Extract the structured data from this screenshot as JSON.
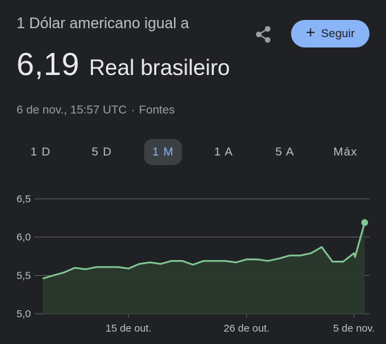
{
  "header": {
    "subtitle": "1 Dólar americano igual a",
    "rate": "6,19",
    "currency": "Real brasileiro"
  },
  "meta": {
    "timestamp": "6 de nov., 15:57 UTC",
    "separator": "·",
    "sources": "Fontes"
  },
  "actions": {
    "share_icon": "share-icon",
    "follow_label": "Seguir",
    "follow_icon": "plus-icon"
  },
  "tabs": [
    {
      "label": "1 D",
      "active": false
    },
    {
      "label": "5 D",
      "active": false
    },
    {
      "label": "1 M",
      "active": true
    },
    {
      "label": "1 A",
      "active": false
    },
    {
      "label": "5 A",
      "active": false
    },
    {
      "label": "Máx",
      "active": false
    }
  ],
  "colors": {
    "background": "#202124",
    "line": "#81c995",
    "fill": "#2b3a2f",
    "grid": "#5f6368",
    "accent": "#8ab4f8"
  },
  "chart_data": {
    "type": "area",
    "y_ticks": [
      "6,5",
      "6,0",
      "5,5",
      "5,0"
    ],
    "y_tick_values": [
      6.5,
      6.0,
      5.5,
      5.0
    ],
    "ylim": [
      5.0,
      6.5
    ],
    "x_tick_labels": [
      "15 de out.",
      "26 de out.",
      "5 de nov."
    ],
    "x_tick_dates": [
      "2024-10-15",
      "2024-10-26",
      "2024-11-05"
    ],
    "x_range": [
      "2024-10-07",
      "2024-11-06"
    ],
    "points": [
      {
        "x": "2024-10-07",
        "y": 5.46
      },
      {
        "x": "2024-10-08",
        "y": 5.5
      },
      {
        "x": "2024-10-09",
        "y": 5.54
      },
      {
        "x": "2024-10-10",
        "y": 5.6
      },
      {
        "x": "2024-10-11",
        "y": 5.58
      },
      {
        "x": "2024-10-12",
        "y": 5.61
      },
      {
        "x": "2024-10-13",
        "y": 5.61
      },
      {
        "x": "2024-10-14",
        "y": 5.61
      },
      {
        "x": "2024-10-15",
        "y": 5.59
      },
      {
        "x": "2024-10-16",
        "y": 5.65
      },
      {
        "x": "2024-10-17",
        "y": 5.67
      },
      {
        "x": "2024-10-18",
        "y": 5.65
      },
      {
        "x": "2024-10-19",
        "y": 5.69
      },
      {
        "x": "2024-10-20",
        "y": 5.69
      },
      {
        "x": "2024-10-21",
        "y": 5.64
      },
      {
        "x": "2024-10-22",
        "y": 5.69
      },
      {
        "x": "2024-10-23",
        "y": 5.69
      },
      {
        "x": "2024-10-24",
        "y": 5.69
      },
      {
        "x": "2024-10-25",
        "y": 5.67
      },
      {
        "x": "2024-10-26",
        "y": 5.71
      },
      {
        "x": "2024-10-27",
        "y": 5.71
      },
      {
        "x": "2024-10-28",
        "y": 5.69
      },
      {
        "x": "2024-10-29",
        "y": 5.72
      },
      {
        "x": "2024-10-30",
        "y": 5.76
      },
      {
        "x": "2024-10-31",
        "y": 5.76
      },
      {
        "x": "2024-11-01",
        "y": 5.79
      },
      {
        "x": "2024-11-02",
        "y": 5.87
      },
      {
        "x": "2024-11-03",
        "y": 5.68
      },
      {
        "x": "2024-11-04",
        "y": 5.68
      },
      {
        "x": "2024-11-05",
        "y": 5.79
      },
      {
        "x": "2024-11-06",
        "y": 5.74
      },
      {
        "x": "2024-11-06",
        "y": 6.19
      }
    ],
    "grid": true,
    "legend": "none"
  }
}
